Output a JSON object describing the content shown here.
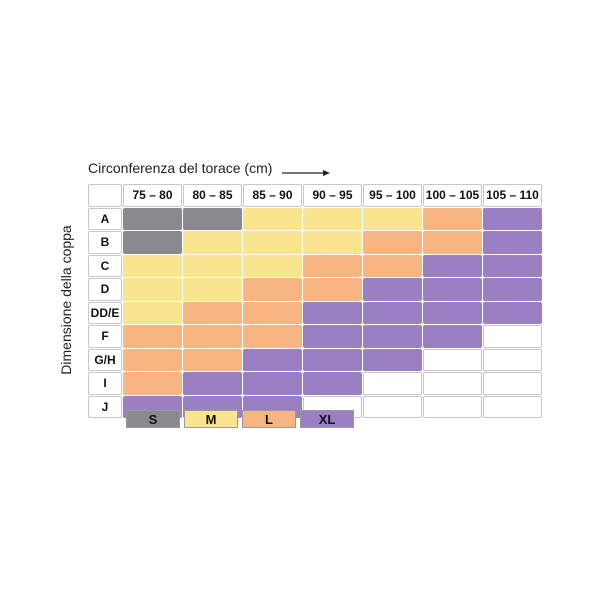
{
  "chart_data": {
    "type": "table",
    "x_title": "Circonferenza del torace (cm)",
    "y_title": "Dimensione della coppa",
    "columns": [
      "75 – 80",
      "80 – 85",
      "85 – 90",
      "90 – 95",
      "95 – 100",
      "100 – 105",
      "105 – 110"
    ],
    "rows": [
      {
        "label": "A",
        "sizes": [
          "S",
          "S",
          "M",
          "M",
          "M",
          "L",
          "XL"
        ]
      },
      {
        "label": "B",
        "sizes": [
          "S",
          "M",
          "M",
          "M",
          "L",
          "L",
          "XL"
        ]
      },
      {
        "label": "C",
        "sizes": [
          "M",
          "M",
          "M",
          "L",
          "L",
          "XL",
          "XL"
        ]
      },
      {
        "label": "D",
        "sizes": [
          "M",
          "M",
          "L",
          "L",
          "XL",
          "XL",
          "XL"
        ]
      },
      {
        "label": "DD/E",
        "sizes": [
          "M",
          "L",
          "L",
          "XL",
          "XL",
          "XL",
          "XL"
        ]
      },
      {
        "label": "F",
        "sizes": [
          "L",
          "L",
          "L",
          "XL",
          "XL",
          "XL",
          ""
        ]
      },
      {
        "label": "G/H",
        "sizes": [
          "L",
          "L",
          "XL",
          "XL",
          "XL",
          "",
          ""
        ]
      },
      {
        "label": "I",
        "sizes": [
          "L",
          "XL",
          "XL",
          "XL",
          "",
          "",
          ""
        ]
      },
      {
        "label": "J",
        "sizes": [
          "XL",
          "XL",
          "XL",
          "",
          "",
          "",
          ""
        ]
      }
    ],
    "legend": [
      {
        "size": "S",
        "color": "#8a8a8d"
      },
      {
        "size": "M",
        "color": "#fbe48e"
      },
      {
        "size": "L",
        "color": "#f7b582"
      },
      {
        "size": "XL",
        "color": "#9b7fc4"
      }
    ],
    "empty_color": "#ffffff"
  }
}
